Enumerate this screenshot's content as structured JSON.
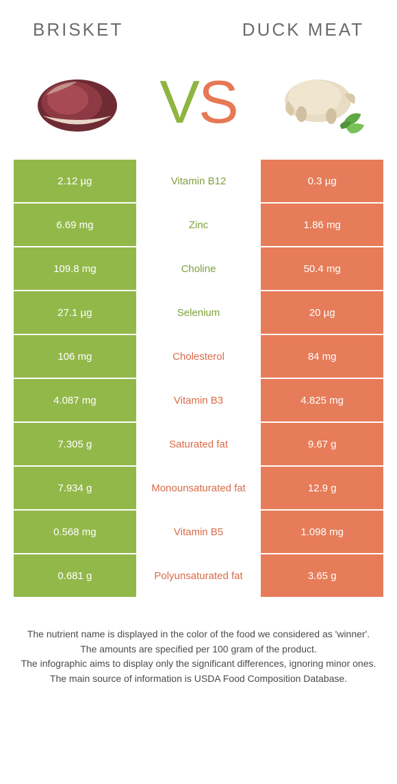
{
  "colors": {
    "green": "#92b84a",
    "orange": "#e67c59",
    "mid_green_text": "#7da03a",
    "mid_orange_text": "#d96a48",
    "header_text": "#6b6b6b",
    "footer_text": "#4a4a4a"
  },
  "header": {
    "left": "Brisket",
    "right": "Duck meat"
  },
  "vs": {
    "v": "V",
    "s": "S"
  },
  "rows": [
    {
      "left": "2.12 µg",
      "mid": "Vitamin B12",
      "right": "0.3 µg",
      "winner": "left"
    },
    {
      "left": "6.69 mg",
      "mid": "Zinc",
      "right": "1.86 mg",
      "winner": "left"
    },
    {
      "left": "109.8 mg",
      "mid": "Choline",
      "right": "50.4 mg",
      "winner": "left"
    },
    {
      "left": "27.1 µg",
      "mid": "Selenium",
      "right": "20 µg",
      "winner": "left"
    },
    {
      "left": "106 mg",
      "mid": "Cholesterol",
      "right": "84 mg",
      "winner": "right"
    },
    {
      "left": "4.087 mg",
      "mid": "Vitamin B3",
      "right": "4.825 mg",
      "winner": "right"
    },
    {
      "left": "7.305 g",
      "mid": "Saturated fat",
      "right": "9.67 g",
      "winner": "right"
    },
    {
      "left": "7.934 g",
      "mid": "Monounsaturated fat",
      "right": "12.9 g",
      "winner": "right"
    },
    {
      "left": "0.568 mg",
      "mid": "Vitamin B5",
      "right": "1.098 mg",
      "winner": "right"
    },
    {
      "left": "0.681 g",
      "mid": "Polyunsaturated fat",
      "right": "3.65 g",
      "winner": "right"
    }
  ],
  "footer": {
    "line1": "The nutrient name is displayed in the color of the food we considered as 'winner'.",
    "line2": "The amounts are specified per 100 gram of the product.",
    "line3": "The infographic aims to display only the significant differences, ignoring minor ones.",
    "line4": "The main source of information is USDA Food Composition Database."
  }
}
